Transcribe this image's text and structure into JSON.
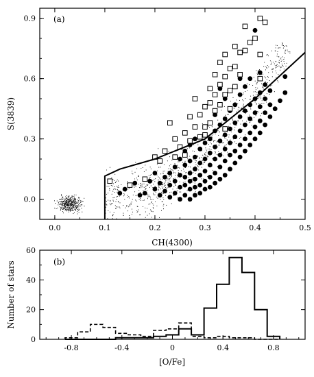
{
  "chart_data": [
    {
      "type": "scatter",
      "panel_label": "(a)",
      "xlabel": "CH(4300)",
      "ylabel": "S(3839)",
      "xlim": [
        -0.03,
        0.5
      ],
      "ylim": [
        -0.1,
        0.95
      ],
      "xticks": [
        "0.0",
        "0.1",
        "0.2",
        "0.3",
        "0.4",
        "0.5"
      ],
      "yticks": [
        "0.0",
        "0.3",
        "0.6",
        "0.9"
      ],
      "grid": false,
      "background_dots": {
        "description_free": true,
        "cluster": {
          "x_range": [
            -0.01,
            0.07
          ],
          "y_range": [
            -0.09,
            0.04
          ],
          "count": 420
        },
        "field": {
          "x_range": [
            0.1,
            0.47
          ],
          "y_range": [
            -0.1,
            0.78
          ],
          "count": 900
        }
      },
      "series": [
        {
          "marker": "filled-circle",
          "points": [
            [
              0.13,
              0.03
            ],
            [
              0.14,
              0.05
            ],
            [
              0.16,
              0.08
            ],
            [
              0.17,
              0.02
            ],
            [
              0.18,
              0.03
            ],
            [
              0.19,
              0.09
            ],
            [
              0.2,
              0.05
            ],
            [
              0.2,
              0.13
            ],
            [
              0.21,
              0.02
            ],
            [
              0.21,
              0.08
            ],
            [
              0.22,
              0.04
            ],
            [
              0.22,
              0.11
            ],
            [
              0.23,
              0.01
            ],
            [
              0.23,
              0.07
            ],
            [
              0.23,
              0.13
            ],
            [
              0.24,
              0.03
            ],
            [
              0.24,
              0.09
            ],
            [
              0.24,
              0.16
            ],
            [
              0.25,
              0.0
            ],
            [
              0.25,
              0.06
            ],
            [
              0.25,
              0.12
            ],
            [
              0.25,
              0.2
            ],
            [
              0.26,
              0.02
            ],
            [
              0.26,
              0.07
            ],
            [
              0.26,
              0.11
            ],
            [
              0.26,
              0.17
            ],
            [
              0.26,
              0.24
            ],
            [
              0.27,
              0.0
            ],
            [
              0.27,
              0.05
            ],
            [
              0.27,
              0.09
            ],
            [
              0.27,
              0.13
            ],
            [
              0.27,
              0.19
            ],
            [
              0.27,
              0.27
            ],
            [
              0.28,
              0.02
            ],
            [
              0.28,
              0.06
            ],
            [
              0.28,
              0.1
            ],
            [
              0.28,
              0.15
            ],
            [
              0.28,
              0.21
            ],
            [
              0.28,
              0.3
            ],
            [
              0.29,
              0.03
            ],
            [
              0.29,
              0.07
            ],
            [
              0.29,
              0.12
            ],
            [
              0.29,
              0.18
            ],
            [
              0.29,
              0.25
            ],
            [
              0.3,
              0.05
            ],
            [
              0.3,
              0.09
            ],
            [
              0.3,
              0.14
            ],
            [
              0.3,
              0.2
            ],
            [
              0.3,
              0.28
            ],
            [
              0.3,
              0.36
            ],
            [
              0.31,
              0.06
            ],
            [
              0.31,
              0.11
            ],
            [
              0.31,
              0.17
            ],
            [
              0.31,
              0.23
            ],
            [
              0.31,
              0.3
            ],
            [
              0.32,
              0.08
            ],
            [
              0.32,
              0.13
            ],
            [
              0.32,
              0.2
            ],
            [
              0.32,
              0.26
            ],
            [
              0.32,
              0.34
            ],
            [
              0.32,
              0.42
            ],
            [
              0.33,
              0.1
            ],
            [
              0.33,
              0.16
            ],
            [
              0.33,
              0.22
            ],
            [
              0.33,
              0.29
            ],
            [
              0.33,
              0.37
            ],
            [
              0.34,
              0.12
            ],
            [
              0.34,
              0.19
            ],
            [
              0.34,
              0.25
            ],
            [
              0.34,
              0.32
            ],
            [
              0.34,
              0.4
            ],
            [
              0.34,
              0.5
            ],
            [
              0.35,
              0.15
            ],
            [
              0.35,
              0.22
            ],
            [
              0.35,
              0.28
            ],
            [
              0.35,
              0.35
            ],
            [
              0.35,
              0.44
            ],
            [
              0.36,
              0.18
            ],
            [
              0.36,
              0.24
            ],
            [
              0.36,
              0.31
            ],
            [
              0.36,
              0.38
            ],
            [
              0.36,
              0.47
            ],
            [
              0.37,
              0.21
            ],
            [
              0.37,
              0.27
            ],
            [
              0.37,
              0.34
            ],
            [
              0.37,
              0.41
            ],
            [
              0.37,
              0.52
            ],
            [
              0.38,
              0.24
            ],
            [
              0.38,
              0.3
            ],
            [
              0.38,
              0.37
            ],
            [
              0.38,
              0.44
            ],
            [
              0.38,
              0.56
            ],
            [
              0.39,
              0.27
            ],
            [
              0.39,
              0.33
            ],
            [
              0.39,
              0.4
            ],
            [
              0.39,
              0.47
            ],
            [
              0.39,
              0.6
            ],
            [
              0.4,
              0.3
            ],
            [
              0.4,
              0.36
            ],
            [
              0.4,
              0.43
            ],
            [
              0.4,
              0.5
            ],
            [
              0.4,
              0.84
            ],
            [
              0.41,
              0.33
            ],
            [
              0.41,
              0.39
            ],
            [
              0.41,
              0.46
            ],
            [
              0.41,
              0.53
            ],
            [
              0.42,
              0.37
            ],
            [
              0.42,
              0.43
            ],
            [
              0.42,
              0.5
            ],
            [
              0.42,
              0.57
            ],
            [
              0.43,
              0.41
            ],
            [
              0.43,
              0.47
            ],
            [
              0.43,
              0.54
            ],
            [
              0.44,
              0.45
            ],
            [
              0.45,
              0.49
            ],
            [
              0.46,
              0.53
            ],
            [
              0.46,
              0.61
            ],
            [
              0.41,
              0.63
            ],
            [
              0.37,
              0.6
            ],
            [
              0.33,
              0.55
            ]
          ]
        },
        {
          "marker": "open-square",
          "points": [
            [
              0.11,
              0.09
            ],
            [
              0.15,
              0.07
            ],
            [
              0.18,
              0.1
            ],
            [
              0.2,
              0.21
            ],
            [
              0.21,
              0.19
            ],
            [
              0.22,
              0.24
            ],
            [
              0.23,
              0.38
            ],
            [
              0.24,
              0.3
            ],
            [
              0.25,
              0.26
            ],
            [
              0.26,
              0.33
            ],
            [
              0.26,
              0.22
            ],
            [
              0.27,
              0.41
            ],
            [
              0.27,
              0.29
            ],
            [
              0.28,
              0.5
            ],
            [
              0.28,
              0.36
            ],
            [
              0.29,
              0.42
            ],
            [
              0.29,
              0.31
            ],
            [
              0.3,
              0.46
            ],
            [
              0.3,
              0.36
            ],
            [
              0.31,
              0.55
            ],
            [
              0.31,
              0.48
            ],
            [
              0.31,
              0.38
            ],
            [
              0.32,
              0.62
            ],
            [
              0.32,
              0.52
            ],
            [
              0.32,
              0.44
            ],
            [
              0.33,
              0.68
            ],
            [
              0.33,
              0.57
            ],
            [
              0.33,
              0.47
            ],
            [
              0.34,
              0.72
            ],
            [
              0.34,
              0.61
            ],
            [
              0.34,
              0.52
            ],
            [
              0.35,
              0.65
            ],
            [
              0.35,
              0.54
            ],
            [
              0.35,
              0.45
            ],
            [
              0.36,
              0.76
            ],
            [
              0.36,
              0.66
            ],
            [
              0.36,
              0.56
            ],
            [
              0.37,
              0.73
            ],
            [
              0.37,
              0.62
            ],
            [
              0.38,
              0.86
            ],
            [
              0.38,
              0.74
            ],
            [
              0.39,
              0.78
            ],
            [
              0.4,
              0.8
            ],
            [
              0.41,
              0.9
            ],
            [
              0.41,
              0.72
            ],
            [
              0.42,
              0.88
            ],
            [
              0.41,
              0.6
            ],
            [
              0.34,
              0.35
            ],
            [
              0.3,
              0.32
            ],
            [
              0.24,
              0.21
            ]
          ]
        }
      ],
      "dividing_line": [
        [
          0.1,
          -0.1
        ],
        [
          0.1,
          0.115
        ],
        [
          0.13,
          0.15
        ],
        [
          0.2,
          0.2
        ],
        [
          0.3,
          0.3
        ],
        [
          0.4,
          0.5
        ],
        [
          0.5,
          0.73
        ]
      ]
    },
    {
      "type": "histogram",
      "panel_label": "(b)",
      "xlabel": "[O/Fe]",
      "ylabel": "Number of stars",
      "xlim": [
        -1.05,
        1.05
      ],
      "ylim": [
        0,
        60
      ],
      "xticks": [
        "-0.8",
        "-0.4",
        "0",
        "0.4",
        "0.8"
      ],
      "yticks": [
        "0",
        "20",
        "40",
        "60"
      ],
      "bin_edges": [
        -0.85,
        -0.75,
        -0.65,
        -0.55,
        -0.45,
        -0.35,
        -0.25,
        -0.15,
        -0.05,
        0.05,
        0.15,
        0.25,
        0.35,
        0.45,
        0.55,
        0.65,
        0.75,
        0.85
      ],
      "series": [
        {
          "style": "solid",
          "values": [
            0,
            0,
            0,
            0,
            1,
            1,
            1,
            2,
            3,
            7,
            3,
            21,
            37,
            55,
            45,
            20,
            2
          ]
        },
        {
          "style": "dashed",
          "values": [
            1,
            5,
            10,
            8,
            4,
            3,
            2,
            6,
            7,
            11,
            2,
            1,
            2,
            1,
            1,
            0,
            0
          ]
        }
      ]
    }
  ]
}
